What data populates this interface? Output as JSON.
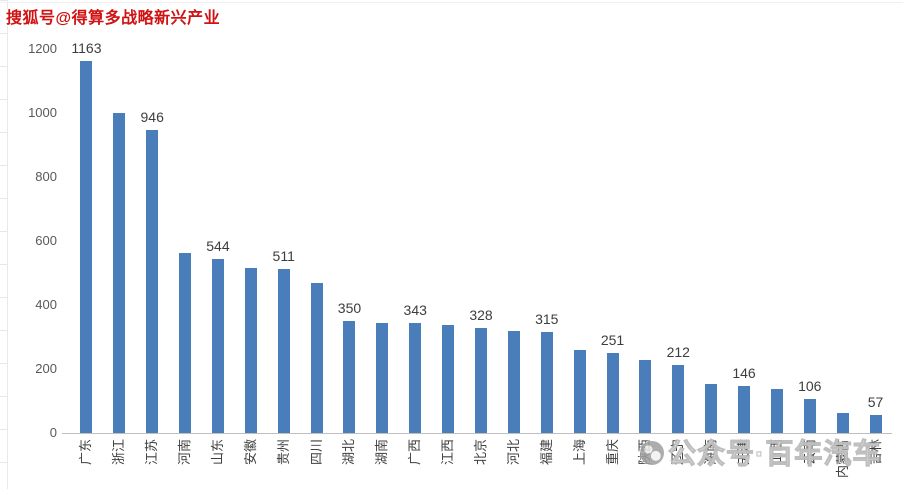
{
  "sohu_watermark": {
    "text": "搜狐号@得算多战略新兴产业",
    "color": "#d01212"
  },
  "bottom_watermark": {
    "text": "公众号·百年汽车",
    "icon": "round-logo-icon"
  },
  "chart_data": {
    "type": "bar",
    "title": "",
    "xlabel": "",
    "ylabel": "",
    "categories": [
      "广东",
      "浙江",
      "江苏",
      "河南",
      "山东",
      "安徽",
      "贵州",
      "四川",
      "湖北",
      "湖南",
      "广西",
      "江西",
      "北京",
      "河北",
      "福建",
      "上海",
      "重庆",
      "陕西",
      "辽宁",
      "海南",
      "天津",
      "山西",
      "云南",
      "内蒙古",
      "吉林"
    ],
    "values": [
      1163,
      1000,
      946,
      564,
      544,
      516,
      511,
      470,
      350,
      345,
      343,
      338,
      328,
      320,
      315,
      258,
      251,
      228,
      212,
      152,
      146,
      137,
      106,
      62,
      57
    ],
    "data_labels": [
      1163,
      null,
      946,
      null,
      544,
      null,
      511,
      null,
      350,
      null,
      343,
      null,
      328,
      null,
      315,
      null,
      251,
      null,
      212,
      null,
      146,
      null,
      106,
      null,
      57
    ],
    "yticks": [
      0,
      200,
      400,
      600,
      800,
      1000,
      1200
    ],
    "ylim": [
      0,
      1200
    ],
    "grid": false,
    "legend": null,
    "bar_color": "#4A7EBB",
    "axis_line_color": "#bfbfbf",
    "tick_label_color": "#595959",
    "value_label_color": "#3d3d3d"
  }
}
